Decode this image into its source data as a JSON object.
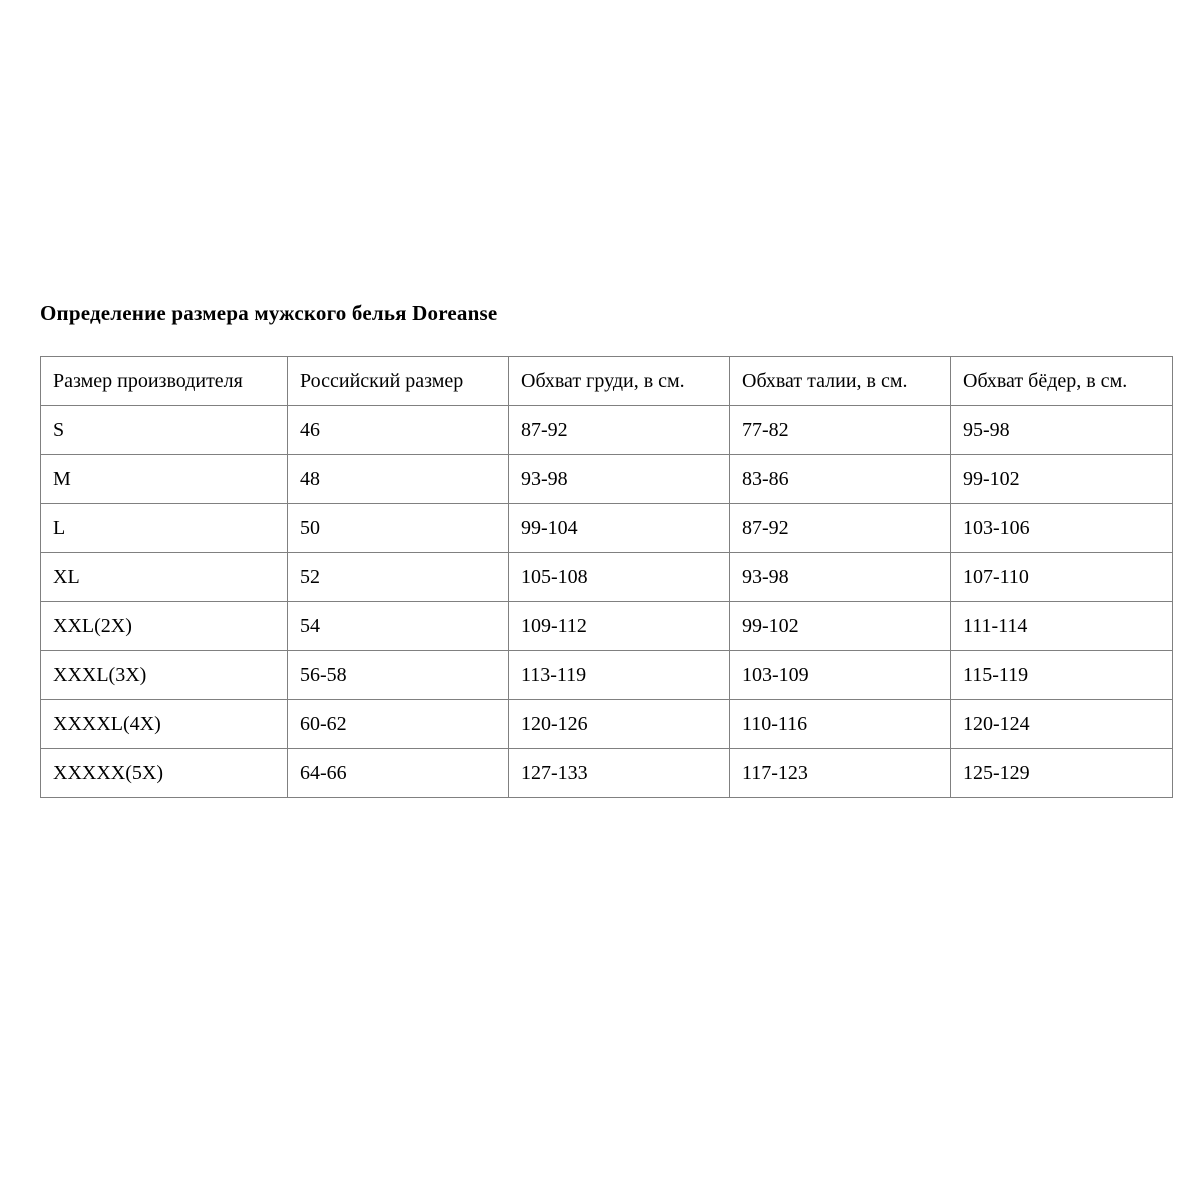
{
  "page": {
    "title": "Определение размера мужского белья Doreanse"
  },
  "table": {
    "columns": [
      "Размер производителя",
      "Российский размер",
      "Обхват груди, в см.",
      "Обхват талии, в см.",
      "Обхват бёдер, в см."
    ],
    "rows": [
      [
        "S",
        "46",
        "87-92",
        "77-82",
        "95-98"
      ],
      [
        "M",
        "48",
        "93-98",
        "83-86",
        "99-102"
      ],
      [
        "L",
        "50",
        "99-104",
        "87-92",
        "103-106"
      ],
      [
        "XL",
        "52",
        "105-108",
        "93-98",
        "107-110"
      ],
      [
        "XXL(2X)",
        "54",
        "109-112",
        "99-102",
        "111-114"
      ],
      [
        "XXXL(3X)",
        "56-58",
        "113-119",
        "103-109",
        "115-119"
      ],
      [
        "XXXXL(4X)",
        "60-62",
        "120-126",
        "110-116",
        "120-124"
      ],
      [
        "XXXXX(5X)",
        "64-66",
        "127-133",
        "117-123",
        "125-129"
      ]
    ],
    "border_color": "#808080"
  }
}
